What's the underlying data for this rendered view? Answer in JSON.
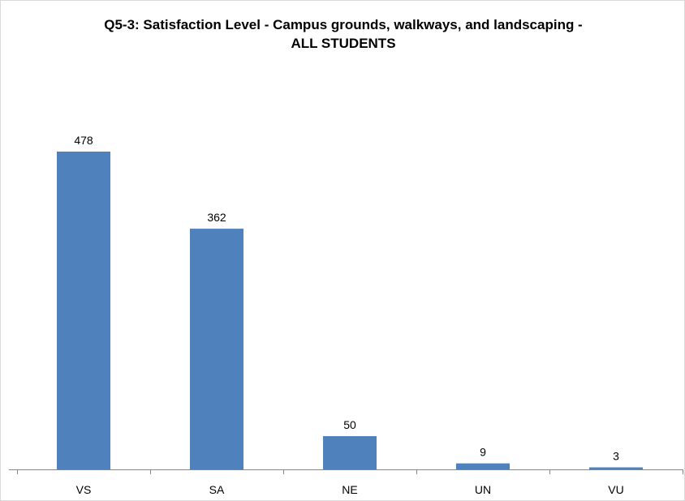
{
  "chart_data": {
    "type": "bar",
    "title_line1": "Q5-3: Satisfaction Level - Campus grounds, walkways, and landscaping -",
    "title_line2": "ALL STUDENTS",
    "categories": [
      "VS",
      "SA",
      "NE",
      "UN",
      "VU"
    ],
    "values": [
      478,
      362,
      50,
      9,
      3
    ],
    "xlabel": "",
    "ylabel": "",
    "ylim": [
      0,
      478
    ],
    "grid": false,
    "legend": "none",
    "data_labels": true,
    "bar_color": "#4f81bd",
    "axis_color": "#868686"
  }
}
